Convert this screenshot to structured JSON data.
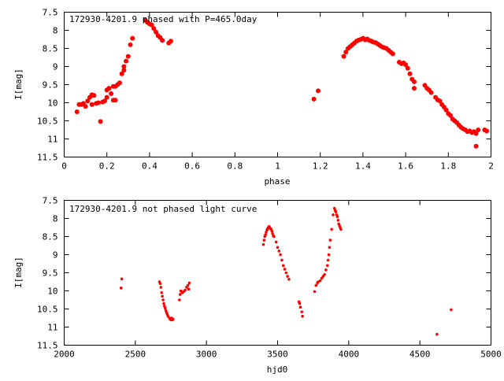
{
  "chart_data": [
    {
      "type": "scatter",
      "title": "172930-4201.9 phased with P=465.0day",
      "xlabel": "phase",
      "ylabel": "I[mag]",
      "xlim": [
        0,
        2
      ],
      "ylim": [
        11.5,
        7.5
      ],
      "y_inverted": true,
      "grid": false,
      "marker_color": "#ff0000",
      "xticks": [
        0,
        0.2,
        0.4,
        0.6,
        0.8,
        1,
        1.2,
        1.4,
        1.6,
        1.8,
        2
      ],
      "xtick_labels": [
        "0",
        "0.2",
        "0.4",
        "0.6",
        "0.8",
        "1",
        "1.2",
        "1.4",
        "1.6",
        "1.8",
        "2"
      ],
      "yticks": [
        7.5,
        8,
        8.5,
        9,
        9.5,
        10,
        10.5,
        11,
        11.5
      ],
      "ytick_labels": [
        "7.5",
        "8",
        "8.5",
        "9",
        "9.5",
        "10",
        "10.5",
        "11",
        "11.5"
      ],
      "points": [
        [
          0.06,
          10.25
        ],
        [
          0.07,
          10.05
        ],
        [
          0.08,
          10.05
        ],
        [
          0.09,
          10.02
        ],
        [
          0.1,
          10.1
        ],
        [
          0.11,
          9.95
        ],
        [
          0.12,
          9.85
        ],
        [
          0.13,
          10.05
        ],
        [
          0.13,
          9.78
        ],
        [
          0.14,
          9.8
        ],
        [
          0.15,
          10.02
        ],
        [
          0.16,
          10.0
        ],
        [
          0.17,
          10.52
        ],
        [
          0.18,
          9.98
        ],
        [
          0.19,
          9.95
        ],
        [
          0.2,
          9.85
        ],
        [
          0.2,
          9.65
        ],
        [
          0.21,
          9.6
        ],
        [
          0.22,
          9.75
        ],
        [
          0.23,
          9.55
        ],
        [
          0.23,
          9.93
        ],
        [
          0.24,
          9.93
        ],
        [
          0.24,
          9.55
        ],
        [
          0.25,
          9.5
        ],
        [
          0.26,
          9.45
        ],
        [
          0.27,
          9.2
        ],
        [
          0.28,
          9.0
        ],
        [
          0.28,
          9.1
        ],
        [
          0.29,
          8.85
        ],
        [
          0.3,
          8.72
        ],
        [
          0.31,
          8.4
        ],
        [
          0.32,
          8.22
        ],
        [
          0.38,
          7.72
        ],
        [
          0.39,
          7.78
        ],
        [
          0.4,
          7.82
        ],
        [
          0.41,
          7.85
        ],
        [
          0.42,
          7.95
        ],
        [
          0.43,
          8.05
        ],
        [
          0.44,
          8.15
        ],
        [
          0.45,
          8.2
        ],
        [
          0.46,
          8.28
        ],
        [
          0.49,
          8.35
        ],
        [
          0.5,
          8.3
        ],
        [
          1.17,
          9.9
        ],
        [
          1.19,
          9.67
        ],
        [
          1.31,
          8.72
        ],
        [
          1.32,
          8.6
        ],
        [
          1.33,
          8.5
        ],
        [
          1.34,
          8.45
        ],
        [
          1.35,
          8.4
        ],
        [
          1.36,
          8.35
        ],
        [
          1.37,
          8.3
        ],
        [
          1.38,
          8.27
        ],
        [
          1.39,
          8.25
        ],
        [
          1.4,
          8.22
        ],
        [
          1.41,
          8.26
        ],
        [
          1.42,
          8.24
        ],
        [
          1.43,
          8.28
        ],
        [
          1.44,
          8.3
        ],
        [
          1.45,
          8.33
        ],
        [
          1.46,
          8.34
        ],
        [
          1.47,
          8.38
        ],
        [
          1.48,
          8.42
        ],
        [
          1.49,
          8.46
        ],
        [
          1.5,
          8.48
        ],
        [
          1.51,
          8.5
        ],
        [
          1.52,
          8.55
        ],
        [
          1.53,
          8.6
        ],
        [
          1.54,
          8.65
        ],
        [
          1.57,
          8.88
        ],
        [
          1.58,
          8.92
        ],
        [
          1.59,
          8.9
        ],
        [
          1.6,
          8.95
        ],
        [
          1.61,
          9.05
        ],
        [
          1.62,
          9.2
        ],
        [
          1.63,
          9.35
        ],
        [
          1.64,
          9.42
        ],
        [
          1.64,
          9.6
        ],
        [
          1.69,
          9.52
        ],
        [
          1.7,
          9.6
        ],
        [
          1.71,
          9.65
        ],
        [
          1.72,
          9.72
        ],
        [
          1.74,
          9.85
        ],
        [
          1.75,
          9.92
        ],
        [
          1.76,
          9.95
        ],
        [
          1.77,
          10.05
        ],
        [
          1.78,
          10.12
        ],
        [
          1.79,
          10.2
        ],
        [
          1.8,
          10.3
        ],
        [
          1.81,
          10.35
        ],
        [
          1.82,
          10.45
        ],
        [
          1.83,
          10.5
        ],
        [
          1.84,
          10.55
        ],
        [
          1.85,
          10.62
        ],
        [
          1.86,
          10.68
        ],
        [
          1.87,
          10.72
        ],
        [
          1.88,
          10.75
        ],
        [
          1.89,
          10.8
        ],
        [
          1.9,
          10.78
        ],
        [
          1.91,
          10.82
        ],
        [
          1.92,
          10.8
        ],
        [
          1.93,
          10.85
        ],
        [
          1.93,
          11.2
        ],
        [
          1.94,
          10.75
        ],
        [
          1.97,
          10.75
        ],
        [
          1.98,
          10.78
        ]
      ]
    },
    {
      "type": "scatter",
      "title": "172930-4201.9 not phased light curve",
      "xlabel": "hjd0",
      "ylabel": "I[mag]",
      "xlim": [
        2000,
        5000
      ],
      "ylim": [
        11.5,
        7.5
      ],
      "y_inverted": true,
      "grid": false,
      "marker_color": "#ff0000",
      "xticks": [
        2000,
        2500,
        3000,
        3500,
        4000,
        4500,
        5000
      ],
      "xtick_labels": [
        "2000",
        "2500",
        "3000",
        "3500",
        "4000",
        "4500",
        "5000"
      ],
      "yticks": [
        7.5,
        8,
        8.5,
        9,
        9.5,
        10,
        10.5,
        11,
        11.5
      ],
      "ytick_labels": [
        "7.5",
        "8",
        "8.5",
        "9",
        "9.5",
        "10",
        "10.5",
        "11",
        "11.5"
      ],
      "points": [
        [
          2400,
          9.92
        ],
        [
          2405,
          9.67
        ],
        [
          2670,
          9.75
        ],
        [
          2675,
          9.8
        ],
        [
          2680,
          9.9
        ],
        [
          2685,
          10.05
        ],
        [
          2690,
          10.15
        ],
        [
          2695,
          10.25
        ],
        [
          2700,
          10.35
        ],
        [
          2705,
          10.42
        ],
        [
          2710,
          10.48
        ],
        [
          2715,
          10.55
        ],
        [
          2720,
          10.6
        ],
        [
          2725,
          10.65
        ],
        [
          2730,
          10.7
        ],
        [
          2740,
          10.75
        ],
        [
          2745,
          10.78
        ],
        [
          2750,
          10.8
        ],
        [
          2755,
          10.75
        ],
        [
          2760,
          10.8
        ],
        [
          2765,
          10.78
        ],
        [
          2810,
          10.25
        ],
        [
          2815,
          10.1
        ],
        [
          2820,
          10.0
        ],
        [
          2830,
          10.05
        ],
        [
          2840,
          10.02
        ],
        [
          2850,
          9.98
        ],
        [
          2860,
          9.9
        ],
        [
          2870,
          9.85
        ],
        [
          2875,
          9.95
        ],
        [
          2880,
          9.78
        ],
        [
          3400,
          8.72
        ],
        [
          3405,
          8.6
        ],
        [
          3410,
          8.5
        ],
        [
          3415,
          8.45
        ],
        [
          3420,
          8.38
        ],
        [
          3425,
          8.32
        ],
        [
          3430,
          8.28
        ],
        [
          3435,
          8.25
        ],
        [
          3440,
          8.22
        ],
        [
          3445,
          8.25
        ],
        [
          3450,
          8.28
        ],
        [
          3455,
          8.3
        ],
        [
          3460,
          8.35
        ],
        [
          3465,
          8.42
        ],
        [
          3470,
          8.48
        ],
        [
          3475,
          8.5
        ],
        [
          3490,
          8.65
        ],
        [
          3500,
          8.8
        ],
        [
          3510,
          8.9
        ],
        [
          3520,
          9.0
        ],
        [
          3530,
          9.15
        ],
        [
          3540,
          9.3
        ],
        [
          3550,
          9.4
        ],
        [
          3560,
          9.5
        ],
        [
          3570,
          9.6
        ],
        [
          3580,
          9.68
        ],
        [
          3650,
          10.3
        ],
        [
          3655,
          10.35
        ],
        [
          3660,
          10.45
        ],
        [
          3670,
          10.58
        ],
        [
          3675,
          10.7
        ],
        [
          3760,
          10.02
        ],
        [
          3770,
          9.85
        ],
        [
          3780,
          9.78
        ],
        [
          3785,
          9.75
        ],
        [
          3800,
          9.72
        ],
        [
          3810,
          9.65
        ],
        [
          3820,
          9.6
        ],
        [
          3830,
          9.55
        ],
        [
          3840,
          9.42
        ],
        [
          3850,
          9.3
        ],
        [
          3855,
          9.15
        ],
        [
          3860,
          9.0
        ],
        [
          3865,
          8.8
        ],
        [
          3870,
          8.6
        ],
        [
          3880,
          8.3
        ],
        [
          3890,
          7.9
        ],
        [
          3900,
          7.72
        ],
        [
          3905,
          7.78
        ],
        [
          3910,
          7.82
        ],
        [
          3915,
          7.9
        ],
        [
          3920,
          7.95
        ],
        [
          3925,
          8.05
        ],
        [
          3930,
          8.15
        ],
        [
          3935,
          8.2
        ],
        [
          3940,
          8.25
        ],
        [
          3945,
          8.3
        ],
        [
          4620,
          11.2
        ],
        [
          4720,
          10.52
        ]
      ]
    }
  ]
}
